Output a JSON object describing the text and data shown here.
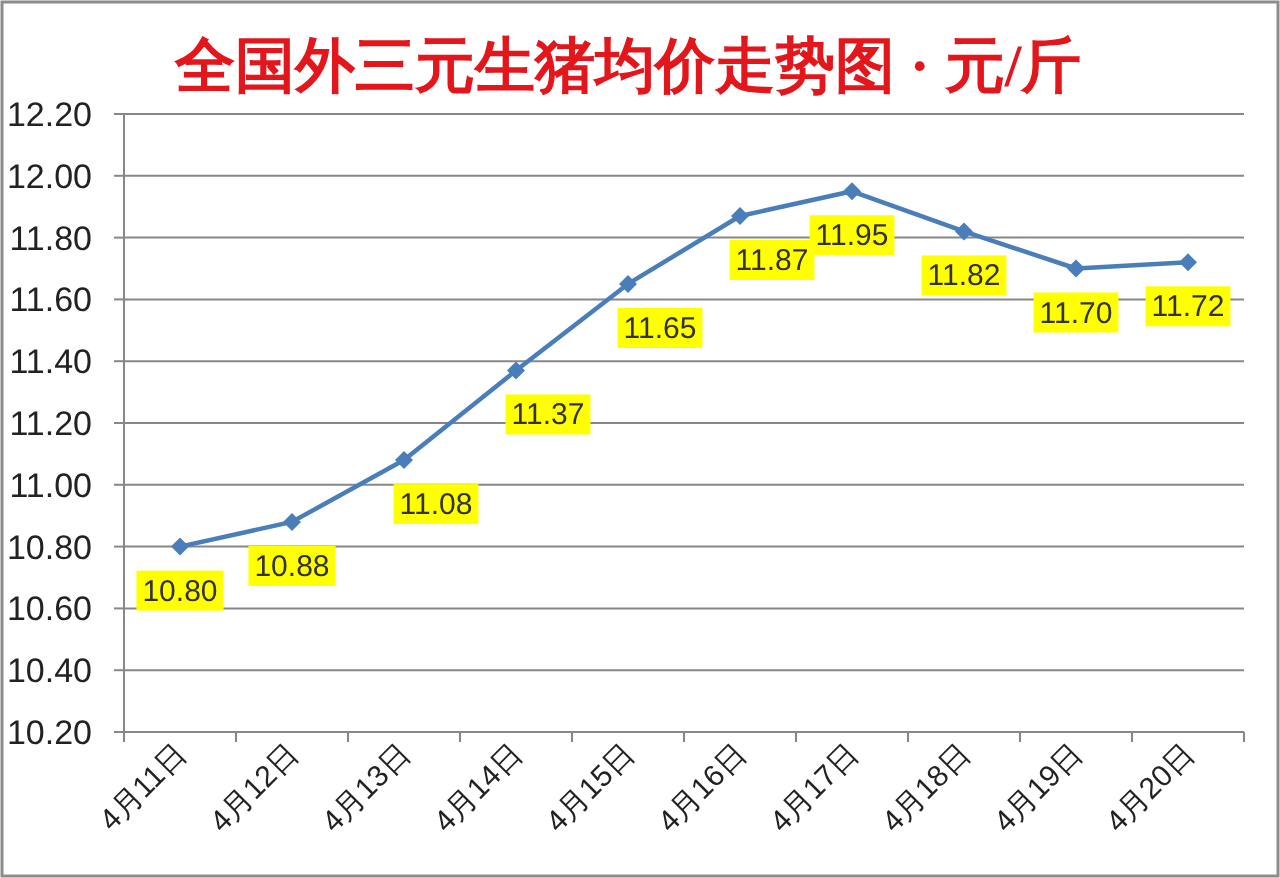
{
  "chart_data": {
    "type": "line",
    "title": "全国外三元生猪均价走势图 · 元/斤",
    "categories": [
      "4月11日",
      "4月12日",
      "4月13日",
      "4月14日",
      "4月15日",
      "4月16日",
      "4月17日",
      "4月18日",
      "4月19日",
      "4月20日"
    ],
    "series": [
      {
        "color": "#4a7ebb",
        "values": [
          10.8,
          10.88,
          11.08,
          11.37,
          11.65,
          11.87,
          11.95,
          11.82,
          11.7,
          11.72
        ],
        "value_labels": [
          "10.80",
          "10.88",
          "11.08",
          "11.37",
          "11.65",
          "11.87",
          "11.95",
          "11.82",
          "11.70",
          "11.72"
        ]
      }
    ],
    "ylim": [
      10.2,
      12.2
    ],
    "yticks": [
      {
        "value": 10.2,
        "label": "10.20"
      },
      {
        "value": 10.4,
        "label": "10.40"
      },
      {
        "value": 10.6,
        "label": "10.60"
      },
      {
        "value": 10.8,
        "label": "10.80"
      },
      {
        "value": 11.0,
        "label": "11.00"
      },
      {
        "value": 11.2,
        "label": "11.20"
      },
      {
        "value": 11.4,
        "label": "11.40"
      },
      {
        "value": 11.6,
        "label": "11.60"
      },
      {
        "value": 11.8,
        "label": "11.80"
      },
      {
        "value": 12.0,
        "label": "12.00"
      },
      {
        "value": 12.2,
        "label": "12.20"
      }
    ],
    "grid": "y",
    "marker": "diamond"
  }
}
